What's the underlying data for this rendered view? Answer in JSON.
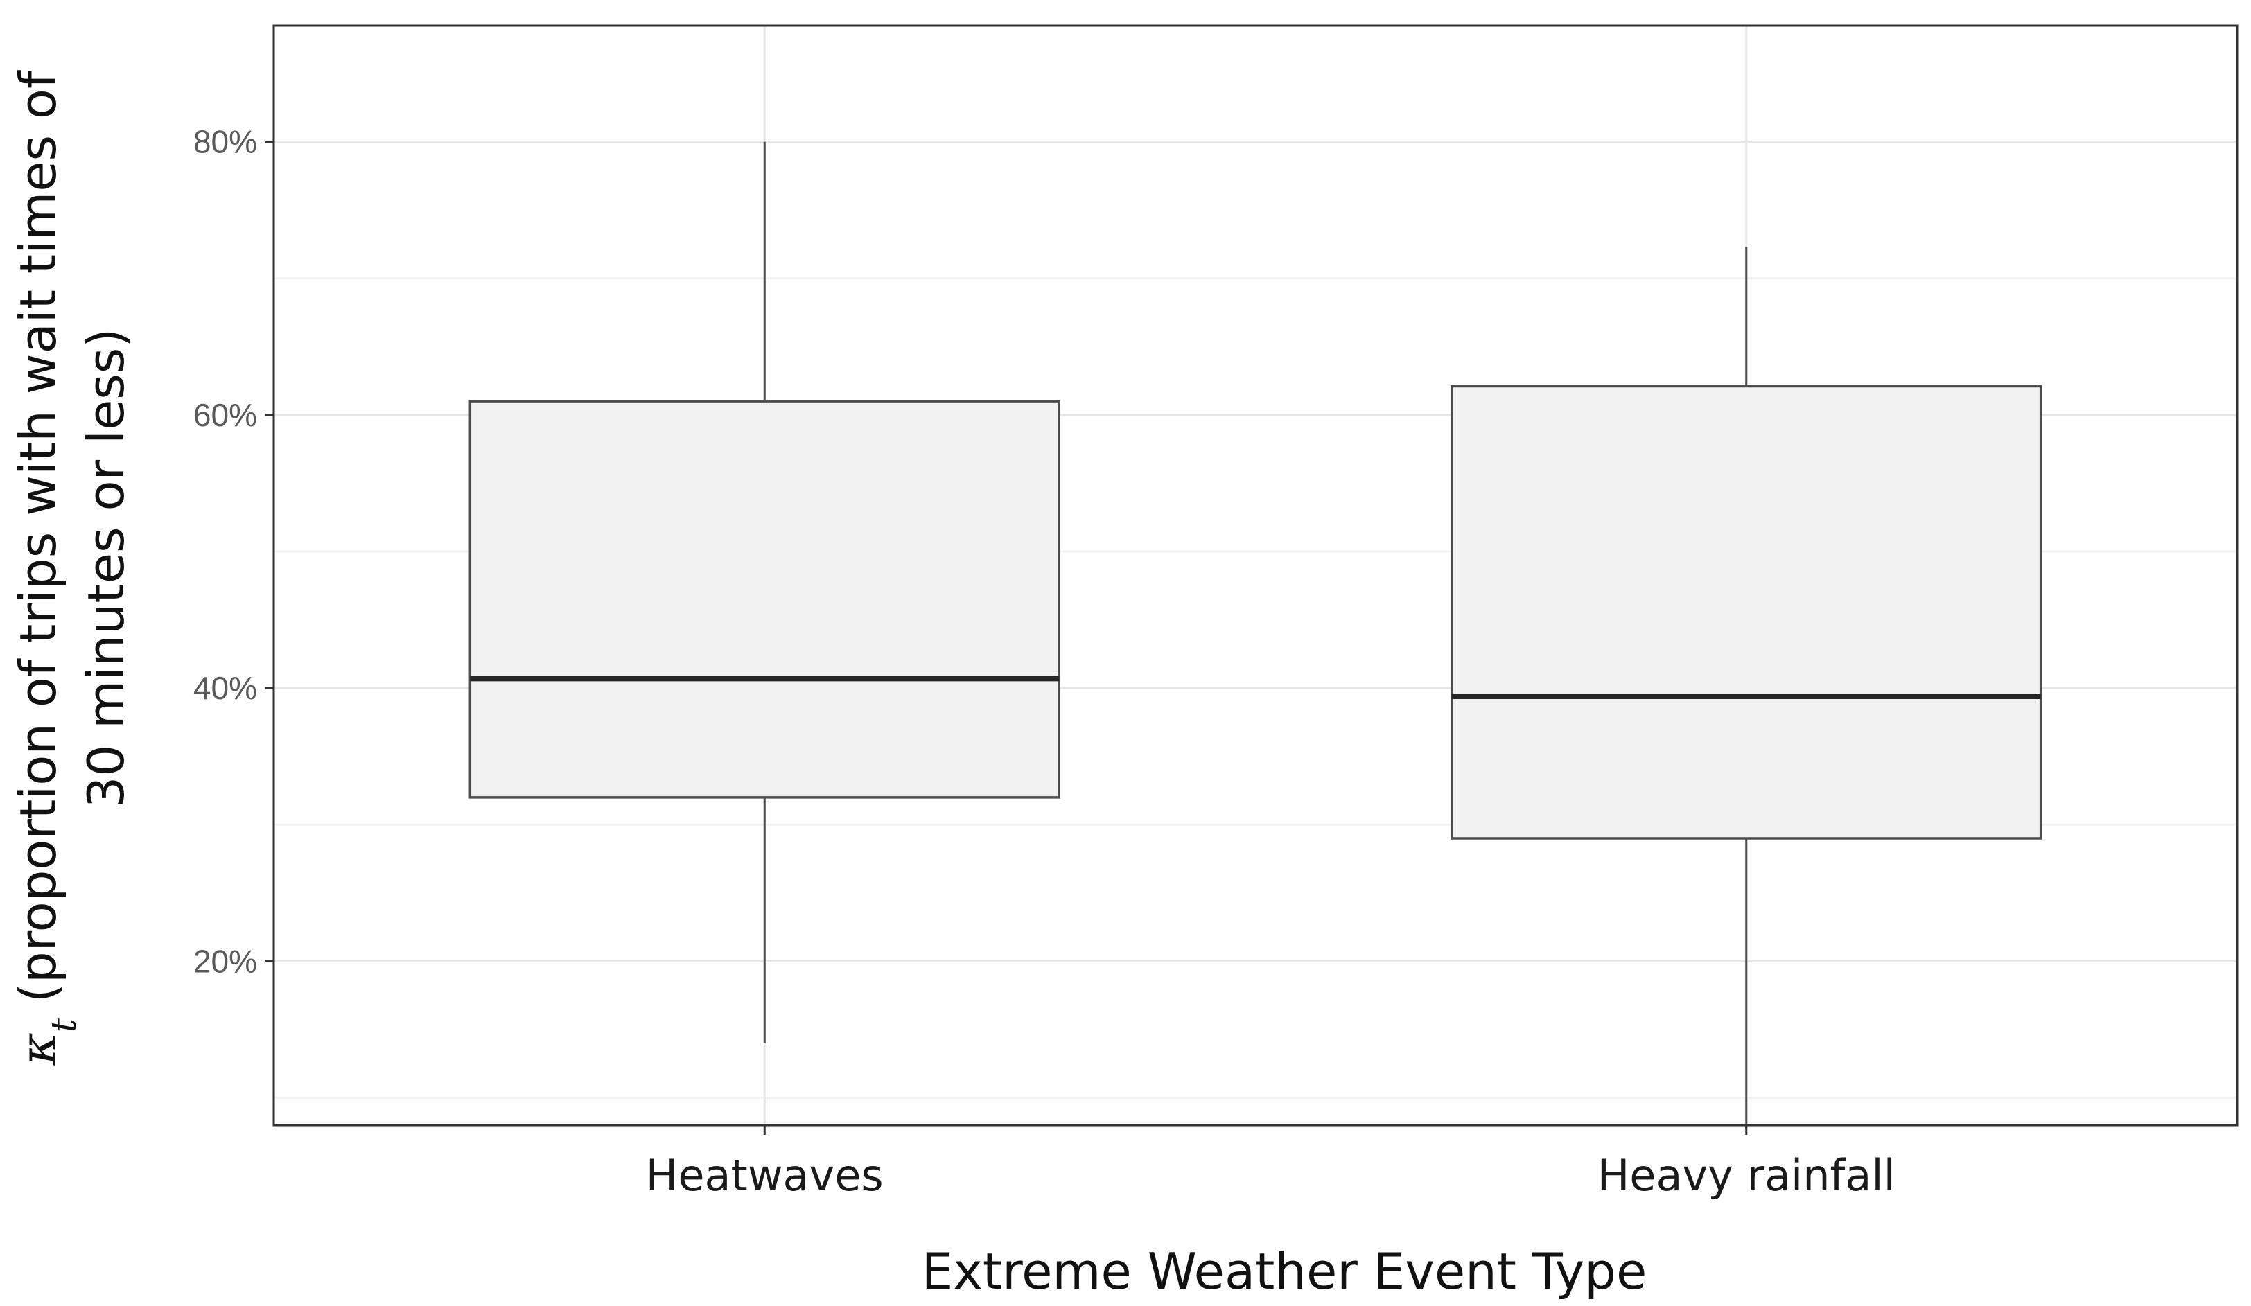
{
  "chart_data": {
    "type": "box",
    "xlabel": "Extreme Weather Event Type",
    "ylabel": {
      "symbol": "κ",
      "subscript": "t",
      "line1": " (proportion of trips with wait times of",
      "line2": "30 minutes or less)"
    },
    "ylim": [
      8,
      88.5
    ],
    "y_ticks": [
      20,
      40,
      60,
      80
    ],
    "y_tick_labels": [
      "20%",
      "40%",
      "60%",
      "80%"
    ],
    "y_minor_ticks": [
      10,
      30,
      50,
      70
    ],
    "grid": true,
    "categories": [
      "Heatwaves",
      "Heavy rainfall"
    ],
    "boxes": [
      {
        "category": "Heatwaves",
        "min": 14,
        "q1": 32,
        "median": 40.7,
        "q3": 61,
        "max": 80
      },
      {
        "category": "Heavy rainfall",
        "min": 7.7,
        "q1": 29,
        "median": 39.4,
        "q3": 62.1,
        "max": 72.3
      }
    ],
    "colors": {
      "box_fill": "#f2f2f2",
      "box_stroke": "#4d4d4d",
      "median": "#262626",
      "whisker": "#4d4d4d",
      "grid_major": "#e6e6e6",
      "grid_minor": "#f2f2f2",
      "panel_border": "#333333"
    }
  }
}
